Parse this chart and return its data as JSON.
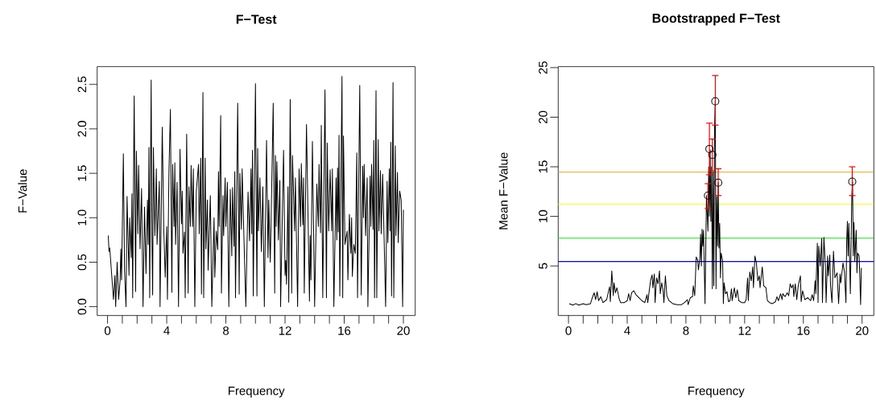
{
  "chart_data": [
    {
      "type": "line",
      "title": "F−Test",
      "xlabel": "Frequency",
      "ylabel": "F−Value",
      "xlim": [
        -0.7,
        20.8
      ],
      "ylim": [
        -0.1,
        2.7
      ],
      "xticks": [
        0,
        {
          "value": 1,
          "label": null
        },
        {
          "value": 2,
          "label": null
        },
        {
          "value": 3,
          "label": null
        },
        4,
        {
          "value": 5,
          "label": null
        },
        {
          "value": 6,
          "label": null
        },
        {
          "value": 7,
          "label": null
        },
        8,
        {
          "value": 9,
          "label": null
        },
        {
          "value": 10,
          "label": null
        },
        {
          "value": 11,
          "label": null
        },
        12,
        {
          "value": 13,
          "label": null
        },
        {
          "value": 14,
          "label": null
        },
        {
          "value": 15,
          "label": null
        },
        16,
        {
          "value": 17,
          "label": null
        },
        {
          "value": 18,
          "label": null
        },
        {
          "value": 19,
          "label": null
        },
        20
      ],
      "yticks": [
        {
          "value": 0,
          "label": "0.0"
        },
        0.5,
        {
          "value": 1,
          "label": "1.0"
        },
        1.5,
        {
          "value": 2,
          "label": "2.0"
        },
        2.5
      ],
      "series": [
        {
          "color": "#000000",
          "x": [
            0.05,
            0.1,
            0.15,
            0.4,
            0.5,
            0.55,
            0.65,
            0.75,
            0.85,
            0.9,
            0.95,
            1.0,
            1.07,
            1.15,
            1.25,
            1.32,
            1.45,
            1.5,
            1.6,
            1.65,
            1.7,
            1.8,
            1.9,
            1.95,
            2.05,
            2.1,
            2.2,
            2.3,
            2.4,
            2.5,
            2.6,
            2.7,
            2.75,
            2.8,
            2.85,
            2.95,
            3.0,
            3.05,
            3.1,
            3.2,
            3.3,
            3.35,
            3.5,
            3.55,
            3.7,
            3.8,
            3.9,
            4.0,
            4.05,
            4.15,
            4.25,
            4.35,
            4.4,
            4.5,
            4.55,
            4.6,
            4.7,
            4.8,
            4.9,
            5.0,
            5.05,
            5.1,
            5.2,
            5.25,
            5.35,
            5.45,
            5.5,
            5.6,
            5.65,
            5.75,
            5.8,
            5.9,
            6.0,
            6.15,
            6.2,
            6.3,
            6.35,
            6.45,
            6.5,
            6.6,
            6.65,
            6.75,
            6.8,
            6.95,
            7.05,
            7.2,
            7.25,
            7.35,
            7.45,
            7.5,
            7.55,
            7.65,
            7.7,
            7.8,
            7.85,
            7.95,
            8.0,
            8.1,
            8.2,
            8.3,
            8.4,
            8.45,
            8.55,
            8.6,
            8.65,
            8.8,
            8.9,
            8.95,
            9.05,
            9.1,
            9.2,
            9.35,
            9.5,
            9.6,
            9.7,
            9.75,
            9.8,
            9.85,
            10.0,
            10.1,
            10.15,
            10.2,
            10.3,
            10.4,
            10.5,
            10.6,
            10.75,
            10.85,
            10.9,
            11.0,
            11.05,
            11.2,
            11.3,
            11.35,
            11.4,
            11.45,
            11.55,
            11.65,
            11.7,
            11.9,
            12.0,
            12.05,
            12.1,
            12.2,
            12.25,
            12.35,
            12.45,
            12.5,
            12.65,
            12.7,
            12.85,
            12.95,
            13.05,
            13.1,
            13.2,
            13.25,
            13.3,
            13.45,
            13.65,
            13.7,
            13.75,
            13.85,
            14.0,
            14.15,
            14.25,
            14.3,
            14.4,
            14.45,
            14.55,
            14.7,
            14.8,
            14.85,
            14.95,
            15.05,
            15.15,
            15.2,
            15.3,
            15.45,
            15.5,
            15.55,
            15.6,
            15.65,
            15.7,
            15.85,
            15.9,
            15.95,
            16.05,
            16.2,
            16.25,
            16.35,
            16.45,
            16.5,
            16.55,
            16.65,
            16.75,
            16.85,
            16.9,
            17.05,
            17.15,
            17.25,
            17.3,
            17.35,
            17.45,
            17.55,
            17.6,
            17.75,
            17.8,
            17.85,
            17.95,
            18.0,
            18.05,
            18.15,
            18.2,
            18.3,
            18.35,
            18.45,
            18.5,
            18.6,
            18.8,
            18.9,
            18.95,
            19.05,
            19.1,
            19.15,
            19.2,
            19.3,
            19.35,
            19.45,
            19.5,
            19.6,
            19.65,
            19.75,
            19.85,
            19.95,
            20.0
          ],
          "values": [
            0.8,
            0.62,
            0.66,
            0.08,
            0.35,
            0,
            0.5,
            0.08,
            0.3,
            0.65,
            0.3,
            0.9,
            1.72,
            0.4,
            0,
            1.24,
            0.35,
            1.0,
            0.55,
            1.27,
            0.1,
            2.37,
            0.17,
            1.75,
            0.82,
            1.59,
            0.65,
            1.33,
            0,
            1.12,
            0.37,
            1.2,
            0.7,
            1.79,
            0.1,
            2.55,
            0.8,
            0.13,
            1.79,
            0.8,
            1.55,
            0.7,
            1.41,
            0,
            2.02,
            0.88,
            0.33,
            0.9,
            0.08,
            1.5,
            2.22,
            0.16,
            1.6,
            0.9,
            1.62,
            0.7,
            1.4,
            0,
            1.77,
            0.93,
            1.3,
            0.6,
            0.84,
            0.1,
            1.94,
            0.15,
            1.35,
            0.9,
            1.59,
            0.9,
            1.55,
            0,
            1.3,
            1.6,
            0.82,
            1.67,
            0.14,
            2.41,
            0.1,
            1.67,
            0.65,
            1.2,
            0.41,
            1.25,
            0,
            1.0,
            0.33,
            0.85,
            0.64,
            1.52,
            0.9,
            2.15,
            0.15,
            1.25,
            0.8,
            1.45,
            0.9,
            1.4,
            0,
            1.32,
            0.57,
            1.34,
            0.68,
            1.52,
            0.1,
            2.29,
            0.14,
            1.5,
            0.87,
            1.55,
            0.9,
            0,
            1.29,
            0.74,
            1.55,
            0.82,
            1.76,
            0.12,
            2.51,
            0.12,
            1.78,
            0.85,
            1.45,
            0.62,
            1.35,
            0,
            1.87,
            0.55,
            1.2,
            0.5,
            0.9,
            2.29,
            0.15,
            1.7,
            0.9,
            1.63,
            0.75,
            1.42,
            0,
            1.76,
            0.35,
            0.52,
            0.25,
            1.35,
            0.05,
            2.33,
            0.15,
            1.7,
            0.85,
            1.45,
            0,
            1.55,
            0.9,
            1.61,
            0.92,
            1.45,
            0.15,
            2.05,
            0.06,
            0.8,
            0.3,
            1.86,
            0,
            1.38,
            0.9,
            1.6,
            0.83,
            2.04,
            0.1,
            2.44,
            0.1,
            1.84,
            0.85,
            1.54,
            0.85,
            1.55,
            0,
            1.45,
            0.75,
            1.56,
            0.84,
            1.93,
            0.12,
            2.59,
            0.1,
            1.92,
            0.7,
            0.85,
            0.3,
            1.04,
            0.6,
            1.0,
            0.34,
            0.7,
            0.6,
            1.73,
            0.1,
            2.49,
            0.13,
            1.58,
            1.0,
            1.6,
            0.8,
            1.45,
            0,
            1.47,
            0.9,
            1.6,
            0.87,
            1.87,
            0.1,
            2.43,
            0.1,
            1.88,
            0.85,
            1.53,
            0.82,
            1.49,
            0,
            1.41,
            0.72,
            1.55,
            0.85,
            1.85,
            0.12,
            2.52,
            0.1,
            1.81,
            0.8,
            1.51,
            0.72,
            1.3,
            1.2,
            0,
            1.09
          ]
        }
      ]
    },
    {
      "type": "line",
      "title": "Bootstrapped F−Test",
      "xlabel": "Frequency",
      "ylabel": "Mean F−Value",
      "xlim": [
        -0.7,
        20.8
      ],
      "ylim": [
        0,
        25.1
      ],
      "xticks": [
        0,
        {
          "value": 1,
          "label": null
        },
        {
          "value": 2,
          "label": null
        },
        {
          "value": 3,
          "label": null
        },
        4,
        {
          "value": 5,
          "label": null
        },
        {
          "value": 6,
          "label": null
        },
        {
          "value": 7,
          "label": null
        },
        8,
        {
          "value": 9,
          "label": null
        },
        {
          "value": 10,
          "label": null
        },
        {
          "value": 11,
          "label": null
        },
        12,
        {
          "value": 13,
          "label": null
        },
        {
          "value": 14,
          "label": null
        },
        {
          "value": 15,
          "label": null
        },
        16,
        {
          "value": 17,
          "label": null
        },
        {
          "value": 18,
          "label": null
        },
        {
          "value": 19,
          "label": null
        },
        20
      ],
      "yticks": [
        5,
        10,
        15,
        20,
        25
      ],
      "ref_lines": [
        {
          "axis": "y",
          "value": 14.45,
          "color": "#ffa500"
        },
        {
          "axis": "y",
          "value": 11.2,
          "color": "#ffff00"
        },
        {
          "axis": "y",
          "value": 7.8,
          "color": "#00ff00"
        },
        {
          "axis": "y",
          "value": 5.45,
          "color": "#0000ff"
        }
      ],
      "series": [
        {
          "color": "#000000",
          "x": [
            0.05,
            0.3,
            0.5,
            0.7,
            1.0,
            1.2,
            1.5,
            1.6,
            1.75,
            1.85,
            1.95,
            2.05,
            2.2,
            2.35,
            2.6,
            2.8,
            2.85,
            2.95,
            3.05,
            3.1,
            3.2,
            3.3,
            3.45,
            3.55,
            3.8,
            4.0,
            4.1,
            4.2,
            4.3,
            4.45,
            4.6,
            4.8,
            5.0,
            5.2,
            5.35,
            5.4,
            5.5,
            5.6,
            5.7,
            5.75,
            5.85,
            5.9,
            6.0,
            6.1,
            6.2,
            6.25,
            6.35,
            6.45,
            6.5,
            6.6,
            6.7,
            6.85,
            7.1,
            7.4,
            7.7,
            7.9,
            8.1,
            8.15,
            8.3,
            8.45,
            8.5,
            8.6,
            8.7,
            8.8,
            8.85,
            8.95,
            9.0,
            9.05,
            9.1,
            9.15,
            9.2,
            9.3,
            9.4,
            9.5,
            9.55,
            9.6,
            9.65,
            9.7,
            9.75,
            9.8,
            9.85,
            9.9,
            9.95,
            10.0,
            10.05,
            10.1,
            10.15,
            10.2,
            10.25,
            10.3,
            10.35,
            10.4,
            10.5,
            10.55,
            10.6,
            10.7,
            10.8,
            10.9,
            11.0,
            11.1,
            11.15,
            11.3,
            11.4,
            11.5,
            11.6,
            11.8,
            12.0,
            12.1,
            12.2,
            12.25,
            12.35,
            12.45,
            12.55,
            12.6,
            12.7,
            12.8,
            12.9,
            13.0,
            13.05,
            13.2,
            13.3,
            13.45,
            13.55,
            13.7,
            13.9,
            14.1,
            14.2,
            14.3,
            14.45,
            14.55,
            14.6,
            14.75,
            14.9,
            15.0,
            15.1,
            15.2,
            15.3,
            15.35,
            15.45,
            15.55,
            15.65,
            15.8,
            15.85,
            15.95,
            16.1,
            16.3,
            16.5,
            16.6,
            16.7,
            16.8,
            16.85,
            16.95,
            17.0,
            17.05,
            17.15,
            17.25,
            17.3,
            17.4,
            17.5,
            17.55,
            17.65,
            17.7,
            17.8,
            17.85,
            17.95,
            18.05,
            18.15,
            18.3,
            18.4,
            18.5,
            18.55,
            18.7,
            18.8,
            18.9,
            18.95,
            19.0,
            19.05,
            19.1,
            19.2,
            19.3,
            19.35,
            19.4,
            19.45,
            19.5,
            19.6,
            19.65,
            19.7,
            19.8,
            19.9,
            19.95
          ],
          "values": [
            1.2,
            1.05,
            1.2,
            1.05,
            1.2,
            1.1,
            1.2,
            1.7,
            2.3,
            1.6,
            2.4,
            1.5,
            1.9,
            1.3,
            1.6,
            2.9,
            1.4,
            4.5,
            2.0,
            3.3,
            2.3,
            2.8,
            1.7,
            1.3,
            1.3,
            1.5,
            2.2,
            1.5,
            2.3,
            2.5,
            2.1,
            1.8,
            1.5,
            1.3,
            2.1,
            1.3,
            2.5,
            3.6,
            4.1,
            2.8,
            4.2,
            1.3,
            3.8,
            3.2,
            4.5,
            2.2,
            3.3,
            2.5,
            1.3,
            4.0,
            2.0,
            1.5,
            1.2,
            1.1,
            1.1,
            1.3,
            1.6,
            1.1,
            1.8,
            1.9,
            3.0,
            2.0,
            5.9,
            5.6,
            4.6,
            5.8,
            8.2,
            5.0,
            8.7,
            7.0,
            8.6,
            1.2,
            12.1,
            8.5,
            15.0,
            10.0,
            16.7,
            9.5,
            15.0,
            2.7,
            14.5,
            3.0,
            19.0,
            21.6,
            2.7,
            12.0,
            7.0,
            13.4,
            6.8,
            9.3,
            3.8,
            6.3,
            5.5,
            1.2,
            3.3,
            2.2,
            2.4,
            1.4,
            1.5,
            2.7,
            1.5,
            2.8,
            1.8,
            2.6,
            1.5,
            1.3,
            1.3,
            1.6,
            3.8,
            1.5,
            4.4,
            3.5,
            4.9,
            2.8,
            6.0,
            5.3,
            3.5,
            4.0,
            2.8,
            4.9,
            3.0,
            2.8,
            1.5,
            1.3,
            1.2,
            1.4,
            1.9,
            1.5,
            2.2,
            1.6,
            2.2,
            1.9,
            2.3,
            2.0,
            3.2,
            2.8,
            3.1,
            1.9,
            3.2,
            1.6,
            3.0,
            4.0,
            1.4,
            2.5,
            1.6,
            1.8,
            1.5,
            2.1,
            1.5,
            3.5,
            2.2,
            7.3,
            1.3,
            7.0,
            5.0,
            7.8,
            1.3,
            7.9,
            5.0,
            1.3,
            6.0,
            4.0,
            6.1,
            3.0,
            1.3,
            6.5,
            3.8,
            4.3,
            1.2,
            4.2,
            3.3,
            5.3,
            4.4,
            1.3,
            7.5,
            9.5,
            6.0,
            9.3,
            2.2,
            12.1,
            13.5,
            6.0,
            9.4,
            5.5,
            8.6,
            4.3,
            6.3,
            6.0,
            1.1,
            4.8
          ]
        },
        {
          "type": "scatter",
          "marker": "circle",
          "color": "#000000",
          "x": [
            9.5,
            9.6,
            9.8,
            10.0,
            10.2,
            19.33
          ],
          "values": [
            12.1,
            16.8,
            16.2,
            21.6,
            13.4,
            13.5
          ],
          "errors": [
            [
              10.8,
              13.3
            ],
            [
              14.2,
              19.4
            ],
            [
              14.6,
              17.8
            ],
            [
              19.2,
              24.2
            ],
            [
              12.1,
              14.8
            ],
            [
              12.1,
              15.0
            ]
          ]
        }
      ]
    }
  ]
}
